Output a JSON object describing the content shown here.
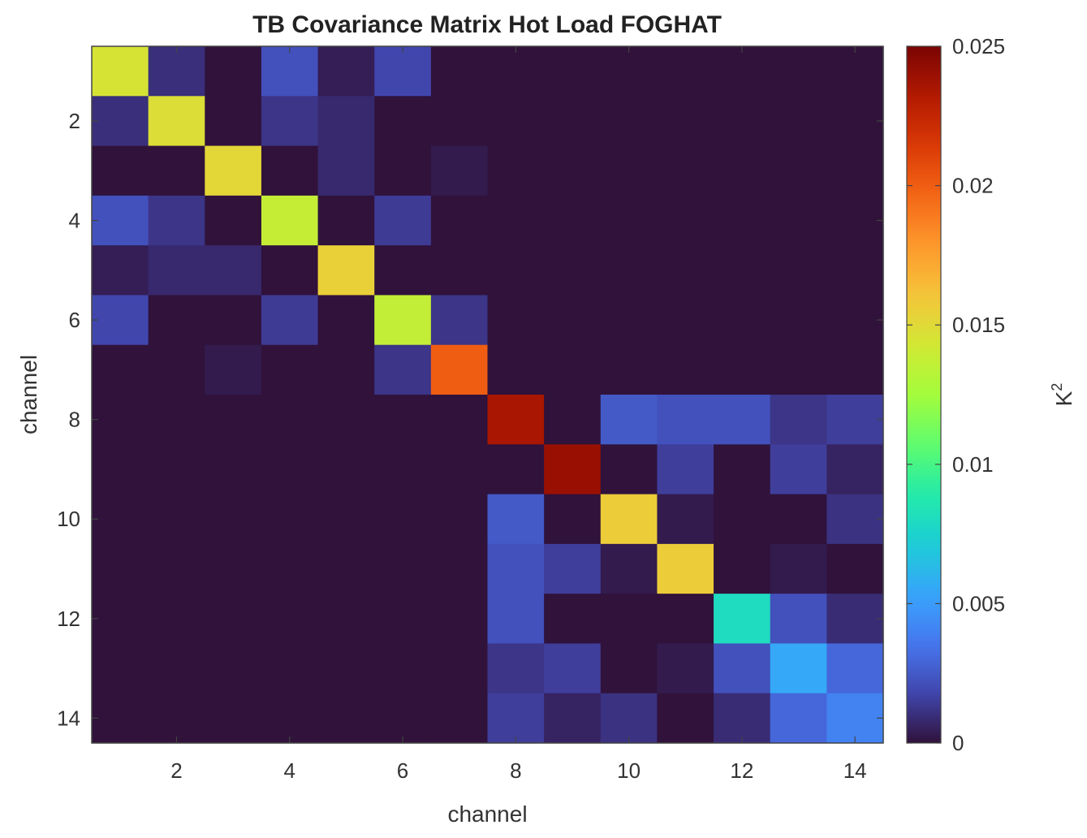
{
  "chart_data": {
    "type": "heatmap",
    "title": "TB Covariance Matrix Hot Load FOGHAT",
    "xlabel": "channel",
    "ylabel": "channel",
    "colorbar_label": "K",
    "colorbar_label_superscript": "2",
    "x_ticks": [
      "2",
      "4",
      "6",
      "8",
      "10",
      "12",
      "14"
    ],
    "y_ticks": [
      "2",
      "4",
      "6",
      "8",
      "10",
      "12",
      "14"
    ],
    "colorbar_ticks": [
      "0",
      "0.005",
      "0.01",
      "0.015",
      "0.02",
      "0.025"
    ],
    "colorbar_range": [
      0,
      0.025
    ],
    "colormap": "turbo",
    "x": [
      1,
      2,
      3,
      4,
      5,
      6,
      7,
      8,
      9,
      10,
      11,
      12,
      13,
      14
    ],
    "y": [
      1,
      2,
      3,
      4,
      5,
      6,
      7,
      8,
      9,
      10,
      11,
      12,
      13,
      14
    ],
    "matrix": [
      [
        0.0145,
        0.001,
        0.0,
        0.0022,
        0.0004,
        0.0018,
        0.0,
        0.0,
        0.0,
        0.0,
        0.0,
        0.0,
        0.0,
        0.0
      ],
      [
        0.001,
        0.0148,
        0.0,
        0.0012,
        0.0008,
        0.0,
        0.0,
        0.0,
        0.0,
        0.0,
        0.0,
        0.0,
        0.0,
        0.0
      ],
      [
        0.0,
        0.0,
        0.0152,
        0.0,
        0.0008,
        0.0,
        0.0003,
        0.0,
        0.0,
        0.0,
        0.0,
        0.0,
        0.0,
        0.0
      ],
      [
        0.0022,
        0.0012,
        0.0,
        0.0138,
        0.0,
        0.0014,
        0.0,
        0.0,
        0.0,
        0.0,
        0.0,
        0.0,
        0.0,
        0.0
      ],
      [
        0.0004,
        0.0008,
        0.0008,
        0.0,
        0.0155,
        0.0,
        0.0,
        0.0,
        0.0,
        0.0,
        0.0,
        0.0,
        0.0,
        0.0
      ],
      [
        0.0018,
        0.0,
        0.0,
        0.0014,
        0.0,
        0.0137,
        0.0012,
        0.0,
        0.0,
        0.0,
        0.0,
        0.0,
        0.0,
        0.0
      ],
      [
        0.0,
        0.0,
        0.0003,
        0.0,
        0.0,
        0.0012,
        0.02,
        0.0,
        0.0,
        0.0,
        0.0,
        0.0,
        0.0,
        0.0
      ],
      [
        0.0,
        0.0,
        0.0,
        0.0,
        0.0,
        0.0,
        0.0,
        0.0235,
        0.0,
        0.0025,
        0.0022,
        0.0022,
        0.0012,
        0.0015
      ],
      [
        0.0,
        0.0,
        0.0,
        0.0,
        0.0,
        0.0,
        0.0,
        0.0,
        0.024,
        0.0,
        0.0015,
        0.0,
        0.0015,
        0.0006
      ],
      [
        0.0,
        0.0,
        0.0,
        0.0,
        0.0,
        0.0,
        0.0,
        0.0025,
        0.0,
        0.0157,
        0.0003,
        0.0,
        0.0,
        0.0011
      ],
      [
        0.0,
        0.0,
        0.0,
        0.0,
        0.0,
        0.0,
        0.0,
        0.0022,
        0.0015,
        0.0003,
        0.0157,
        0.0,
        0.0003,
        0.0
      ],
      [
        0.0,
        0.0,
        0.0,
        0.0,
        0.0,
        0.0,
        0.0,
        0.0022,
        0.0,
        0.0,
        0.0,
        0.008,
        0.0022,
        0.0009
      ],
      [
        0.0,
        0.0,
        0.0,
        0.0,
        0.0,
        0.0,
        0.0,
        0.0012,
        0.0015,
        0.0,
        0.0003,
        0.0022,
        0.0055,
        0.003
      ],
      [
        0.0,
        0.0,
        0.0,
        0.0,
        0.0,
        0.0,
        0.0,
        0.0015,
        0.0006,
        0.0011,
        0.0,
        0.0009,
        0.003,
        0.004
      ]
    ]
  }
}
